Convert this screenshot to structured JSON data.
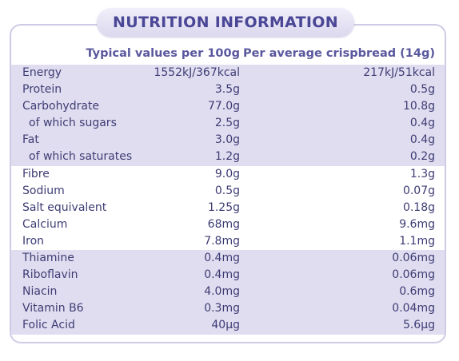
{
  "title": "NUTRITION INFORMATION",
  "headers": {
    "per100g": "Typical values per 100g",
    "perServing": "Per average crispbread (14g)"
  },
  "groups": [
    {
      "rows": [
        {
          "label": "Energy",
          "per100g": "1552kJ/367kcal",
          "perServing": "217kJ/51kcal"
        },
        {
          "label": "Protein",
          "per100g": "3.5g",
          "perServing": "0.5g"
        },
        {
          "label": "Carbohydrate",
          "per100g": "77.0g",
          "perServing": "10.8g"
        },
        {
          "label": "of which sugars",
          "per100g": "2.5g",
          "perServing": "0.4g"
        },
        {
          "label": "Fat",
          "per100g": "3.0g",
          "perServing": "0.4g"
        },
        {
          "label": "of which saturates",
          "per100g": "1.2g",
          "perServing": "0.2g"
        }
      ]
    },
    {
      "rows": [
        {
          "label": "Fibre",
          "per100g": "9.0g",
          "perServing": "1.3g"
        },
        {
          "label": "Sodium",
          "per100g": "0.5g",
          "perServing": "0.07g"
        },
        {
          "label": "Salt equivalent",
          "per100g": "1.25g",
          "perServing": "0.18g"
        },
        {
          "label": "Calcium",
          "per100g": "68mg",
          "perServing": "9.6mg"
        },
        {
          "label": "Iron",
          "per100g": "7.8mg",
          "perServing": "1.1mg"
        }
      ]
    },
    {
      "rows": [
        {
          "label": "Thiamine",
          "per100g": "0.4mg",
          "perServing": "0.06mg"
        },
        {
          "label": "Riboflavin",
          "per100g": "0.4mg",
          "perServing": "0.06mg"
        },
        {
          "label": "Niacin",
          "per100g": "4.0mg",
          "perServing": "0.6mg"
        },
        {
          "label": "Vitamin B6",
          "per100g": "0.3mg",
          "perServing": "0.04mg"
        },
        {
          "label": "Folic Acid",
          "per100g": "40µg",
          "perServing": "5.6µg"
        }
      ]
    }
  ],
  "colors": {
    "text": "#3e3c74",
    "header": "#5a589e",
    "title": "#4a4796",
    "shade": "#e0ddf0",
    "border": "#cfcbe4"
  }
}
